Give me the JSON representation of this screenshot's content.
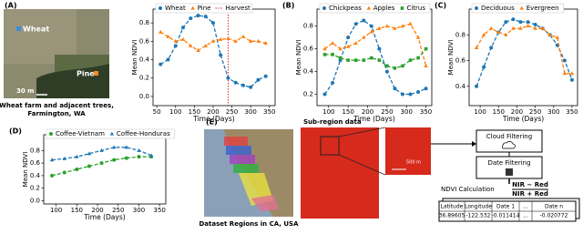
{
  "chart_data": [
    {
      "type": "scatter",
      "x_label": "Time (Days)",
      "y_label": "Mean NDVI",
      "x": [
        60,
        80,
        100,
        120,
        140,
        160,
        180,
        200,
        220,
        240,
        260,
        280,
        300,
        320,
        340
      ],
      "series": [
        {
          "name": "Wheat",
          "color": "#1f77b4",
          "marker": "circle",
          "values": [
            0.35,
            0.4,
            0.55,
            0.75,
            0.85,
            0.88,
            0.87,
            0.8,
            0.45,
            0.2,
            0.15,
            0.12,
            0.1,
            0.18,
            0.22
          ]
        },
        {
          "name": "Pine",
          "color": "#ff7f0e",
          "marker": "triangle",
          "values": [
            0.7,
            0.65,
            0.6,
            0.62,
            0.55,
            0.5,
            0.55,
            0.6,
            0.62,
            0.63,
            0.6,
            0.65,
            0.6,
            0.6,
            0.58
          ]
        }
      ],
      "vline": {
        "name": "Harvest",
        "x": 240,
        "color": "#d62728"
      },
      "xlim": [
        40,
        365
      ],
      "ylim": [
        -0.1,
        0.95
      ],
      "xticks": [
        50,
        100,
        150,
        200,
        250,
        300,
        350
      ],
      "yticks": [
        {
          "value": 0,
          "label": "0.0"
        },
        0.2,
        0.4,
        0.6,
        0.8
      ]
    },
    {
      "type": "scatter",
      "panel": "(B)",
      "x_label": "Time (Days)",
      "y_label": "Mean NDVI",
      "x": [
        90,
        110,
        130,
        150,
        170,
        190,
        210,
        230,
        250,
        270,
        290,
        310,
        330,
        350
      ],
      "series": [
        {
          "name": "Chickpeas",
          "color": "#1f77b4",
          "marker": "circle",
          "values": [
            0.2,
            0.3,
            0.5,
            0.7,
            0.82,
            0.85,
            0.8,
            0.6,
            0.4,
            0.25,
            0.2,
            0.2,
            0.22,
            0.25
          ]
        },
        {
          "name": "Apples",
          "color": "#ff7f0e",
          "marker": "triangle",
          "values": [
            0.6,
            0.65,
            0.6,
            0.62,
            0.65,
            0.7,
            0.75,
            0.78,
            0.8,
            0.78,
            0.8,
            0.82,
            0.7,
            0.45
          ]
        },
        {
          "name": "Citrus",
          "color": "#2ca02c",
          "marker": "square",
          "values": [
            0.55,
            0.55,
            0.52,
            0.5,
            0.5,
            0.5,
            0.52,
            0.5,
            0.45,
            0.43,
            0.45,
            0.5,
            0.52,
            0.6
          ]
        }
      ],
      "xlim": [
        70,
        365
      ],
      "ylim": [
        0.1,
        0.95
      ],
      "xticks": [
        100,
        150,
        200,
        250,
        300,
        350
      ],
      "yticks": [
        0.2,
        0.4,
        0.6,
        0.8
      ]
    },
    {
      "type": "scatter",
      "panel": "(C)",
      "x_label": "Time (Days)",
      "y_label": "Mean NDVI",
      "x": [
        90,
        110,
        130,
        150,
        170,
        190,
        210,
        230,
        250,
        270,
        290,
        310,
        330,
        350
      ],
      "series": [
        {
          "name": "Deciduous",
          "color": "#1f77b4",
          "marker": "circle",
          "values": [
            0.4,
            0.55,
            0.7,
            0.82,
            0.9,
            0.92,
            0.9,
            0.9,
            0.88,
            0.85,
            0.8,
            0.72,
            0.6,
            0.45
          ]
        },
        {
          "name": "Evergreen",
          "color": "#ff7f0e",
          "marker": "triangle",
          "values": [
            0.7,
            0.8,
            0.85,
            0.82,
            0.8,
            0.85,
            0.85,
            0.87,
            0.85,
            0.85,
            0.8,
            0.78,
            0.5,
            0.5
          ]
        }
      ],
      "xlim": [
        70,
        365
      ],
      "ylim": [
        0.25,
        1.0
      ],
      "xticks": [
        100,
        150,
        200,
        250,
        300,
        350
      ],
      "yticks": [
        0.4,
        0.6,
        0.8
      ]
    },
    {
      "type": "scatter",
      "panel": "(D)",
      "x_label": "Time (Days)",
      "y_label": "Mean NDVI",
      "x": [
        90,
        120,
        150,
        180,
        210,
        240,
        270,
        300,
        330
      ],
      "series": [
        {
          "name": "Coffee-Vietnam",
          "color": "#2ca02c",
          "marker": "circle",
          "values": [
            0.4,
            0.45,
            0.5,
            0.55,
            0.6,
            0.65,
            0.68,
            0.7,
            0.7
          ]
        },
        {
          "name": "Coffee-Honduras",
          "color": "#1f77b4",
          "marker": "triangle",
          "values": [
            0.65,
            0.67,
            0.7,
            0.75,
            0.8,
            0.85,
            0.85,
            0.8,
            0.72
          ]
        }
      ],
      "xlim": [
        70,
        365
      ],
      "ylim": [
        -0.05,
        1.05
      ],
      "xticks": [
        100,
        150,
        200,
        250,
        300,
        350
      ],
      "yticks": [
        {
          "value": 0,
          "label": "0.0"
        },
        0.2,
        0.4,
        0.6,
        0.8
      ]
    }
  ],
  "panel_a": {
    "panel": "(A)",
    "labels": [
      "Wheat",
      "Pine"
    ],
    "scale": "30 m",
    "caption": [
      "Wheat farm and adjacent trees,",
      "Farmington, WA"
    ]
  },
  "panel_e": {
    "panel": "(E)",
    "map_caption": "Dataset Regions in CA, USA",
    "subregion": "Sub-region data",
    "zoom_scale": "500 m",
    "steps": [
      "Cloud Filtering",
      "Date Filtering",
      "NDVI Calculation"
    ],
    "formula_numerator": "NIR − Red",
    "formula_denominator": "NIR + Red",
    "table": {
      "header": [
        "Latitude",
        "Longitude",
        "Date 1",
        "...",
        "Date n"
      ],
      "rows": [
        [
          "36.89605",
          "-122.532",
          "-0.011414",
          "...",
          "-0.020772"
        ]
      ]
    }
  }
}
